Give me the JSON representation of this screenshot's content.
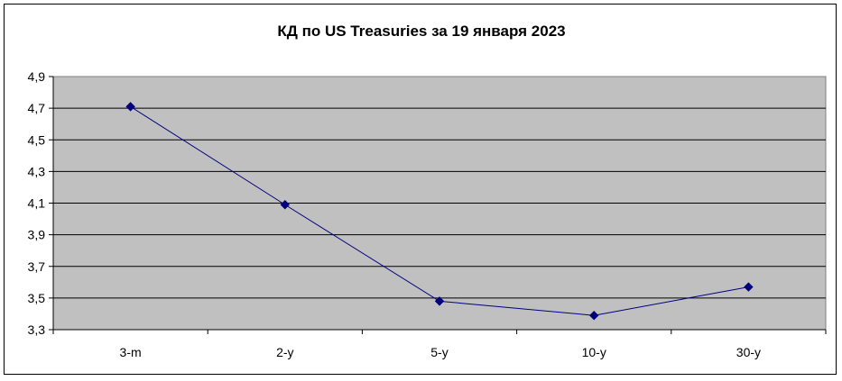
{
  "chart_data": {
    "type": "line",
    "title": "КД по US Treasuries за 19 января 2023",
    "xlabel": "",
    "ylabel": "",
    "categories": [
      "3-m",
      "2-y",
      "5-y",
      "10-y",
      "30-y"
    ],
    "series": [
      {
        "values": [
          4.71,
          4.09,
          3.48,
          3.39,
          3.57
        ],
        "color": "#00007f",
        "marker": "diamond"
      }
    ],
    "ylim": [
      3.3,
      4.9
    ],
    "yticks": [
      "3,3",
      "3,5",
      "3,7",
      "3,9",
      "4,1",
      "4,3",
      "4,5",
      "4,7",
      "4,9"
    ],
    "ytick_values": [
      3.3,
      3.5,
      3.7,
      3.9,
      4.1,
      4.3,
      4.5,
      4.7,
      4.9
    ],
    "grid": true,
    "legend": "none",
    "plot_background": "#c0c0c0"
  }
}
